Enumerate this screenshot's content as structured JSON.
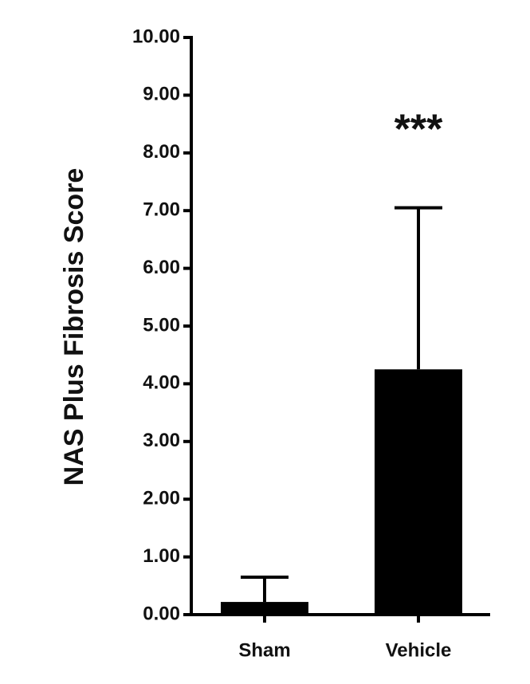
{
  "chart_data": {
    "type": "bar",
    "y_label": "NAS Plus Fibrosis Score",
    "categories": [
      "Sham",
      "Vehicle"
    ],
    "values": [
      0.22,
      4.25
    ],
    "errors": [
      0.43,
      2.8
    ],
    "color": "#000000",
    "annotation": "***",
    "ylim": [
      0,
      10
    ],
    "yticks": [
      {
        "value": 0,
        "label": "0.00"
      },
      {
        "value": 1,
        "label": "1.00"
      },
      {
        "value": 2,
        "label": "2.00"
      },
      {
        "value": 3,
        "label": "3.00"
      },
      {
        "value": 4,
        "label": "4.00"
      },
      {
        "value": 5,
        "label": "5.00"
      },
      {
        "value": 6,
        "label": "6.00"
      },
      {
        "value": 7,
        "label": "7.00"
      },
      {
        "value": 8,
        "label": "8.00"
      },
      {
        "value": 9,
        "label": "9.00"
      },
      {
        "value": 10,
        "label": "10.00"
      }
    ],
    "grid": false
  }
}
